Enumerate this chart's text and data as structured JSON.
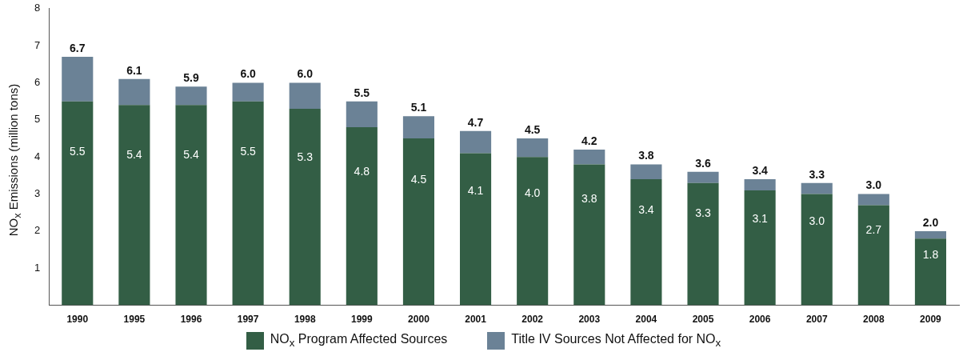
{
  "chart_data": {
    "type": "bar",
    "stacked": true,
    "ylabel": "NO$_{x}$ Emissions (million tons)",
    "categories": [
      "1990",
      "1995",
      "1996",
      "1997",
      "1998",
      "1999",
      "2000",
      "2001",
      "2002",
      "2003",
      "2004",
      "2005",
      "2006",
      "2007",
      "2008",
      "2009"
    ],
    "series": [
      {
        "name": "NO$_{x}$ Program Affected Sources",
        "color": "#335e45",
        "values": [
          5.5,
          5.4,
          5.4,
          5.5,
          5.3,
          4.8,
          4.5,
          4.1,
          4.0,
          3.8,
          3.4,
          3.3,
          3.1,
          3.0,
          2.7,
          1.8
        ],
        "value_labels": [
          "5.5",
          "5.4",
          "5.4",
          "5.5",
          "5.3",
          "4.8",
          "4.5",
          "4.1",
          "4.0",
          "3.8",
          "3.4",
          "3.3",
          "3.1",
          "3.0",
          "2.7",
          "1.8"
        ]
      },
      {
        "name": "Title IV Sources Not Affected for NO$_{x}$",
        "color": "#6b8296",
        "values": [
          1.2,
          0.7,
          0.5,
          0.5,
          0.7,
          0.7,
          0.6,
          0.6,
          0.5,
          0.4,
          0.4,
          0.3,
          0.3,
          0.3,
          0.3,
          0.2
        ]
      }
    ],
    "totals": [
      "6.7",
      "6.1",
      "5.9",
      "6.0",
      "6.0",
      "5.5",
      "5.1",
      "4.7",
      "4.5",
      "4.2",
      "3.8",
      "3.6",
      "3.4",
      "3.3",
      "3.0",
      "2.0"
    ],
    "ylim": [
      0,
      8
    ],
    "yticks": [
      1,
      2,
      3,
      4,
      5,
      6,
      7,
      8
    ],
    "legend": "bottom"
  }
}
